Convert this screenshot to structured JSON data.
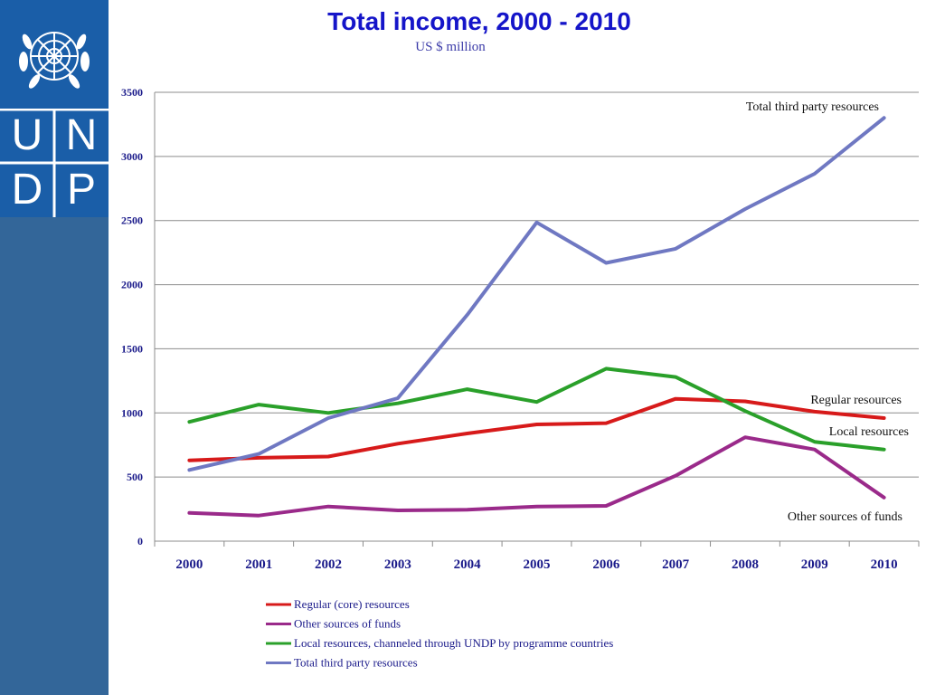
{
  "header": {
    "title": "Total income, 2000 - 2010",
    "subtitle": "US $ million"
  },
  "logo": {
    "letters": [
      "U",
      "N",
      "D",
      "P"
    ],
    "colors": {
      "logo_bg": "#1a5ea8",
      "sidebar_bg": "#336699"
    }
  },
  "chart_data": {
    "type": "line",
    "title": "Total income, 2000 - 2010",
    "subtitle": "US $ million",
    "xlabel": "",
    "ylabel": "",
    "x": [
      "2000",
      "2001",
      "2002",
      "2003",
      "2004",
      "2005",
      "2006",
      "2007",
      "2008",
      "2009",
      "2010"
    ],
    "ylim": [
      0,
      3500
    ],
    "yticks": [
      "0",
      "500",
      "1000",
      "1500",
      "2000",
      "2500",
      "3000",
      "3500"
    ],
    "grid": "horizontal",
    "legend_position": "bottom",
    "series": [
      {
        "name": "Regular (core) resources",
        "label": "Regular resources",
        "color": "#d71a1a",
        "values": [
          630,
          650,
          660,
          760,
          840,
          910,
          920,
          1110,
          1090,
          1010,
          960
        ]
      },
      {
        "name": "Other sources of funds",
        "label": "Other sources of funds",
        "color": "#9a2a8a",
        "values": [
          220,
          200,
          270,
          240,
          245,
          270,
          275,
          510,
          810,
          715,
          340
        ]
      },
      {
        "name": "Local resources, channeled through UNDP by programme countries",
        "label": "Local resources",
        "color": "#2aa02a",
        "values": [
          930,
          1065,
          1000,
          1075,
          1185,
          1085,
          1345,
          1280,
          1015,
          775,
          715
        ]
      },
      {
        "name": "Total third party resources",
        "label": "Total third party resources",
        "color": "#6f78c2",
        "values": [
          555,
          680,
          960,
          1115,
          1765,
          2485,
          2170,
          2280,
          2590,
          2865,
          3300
        ]
      }
    ]
  }
}
